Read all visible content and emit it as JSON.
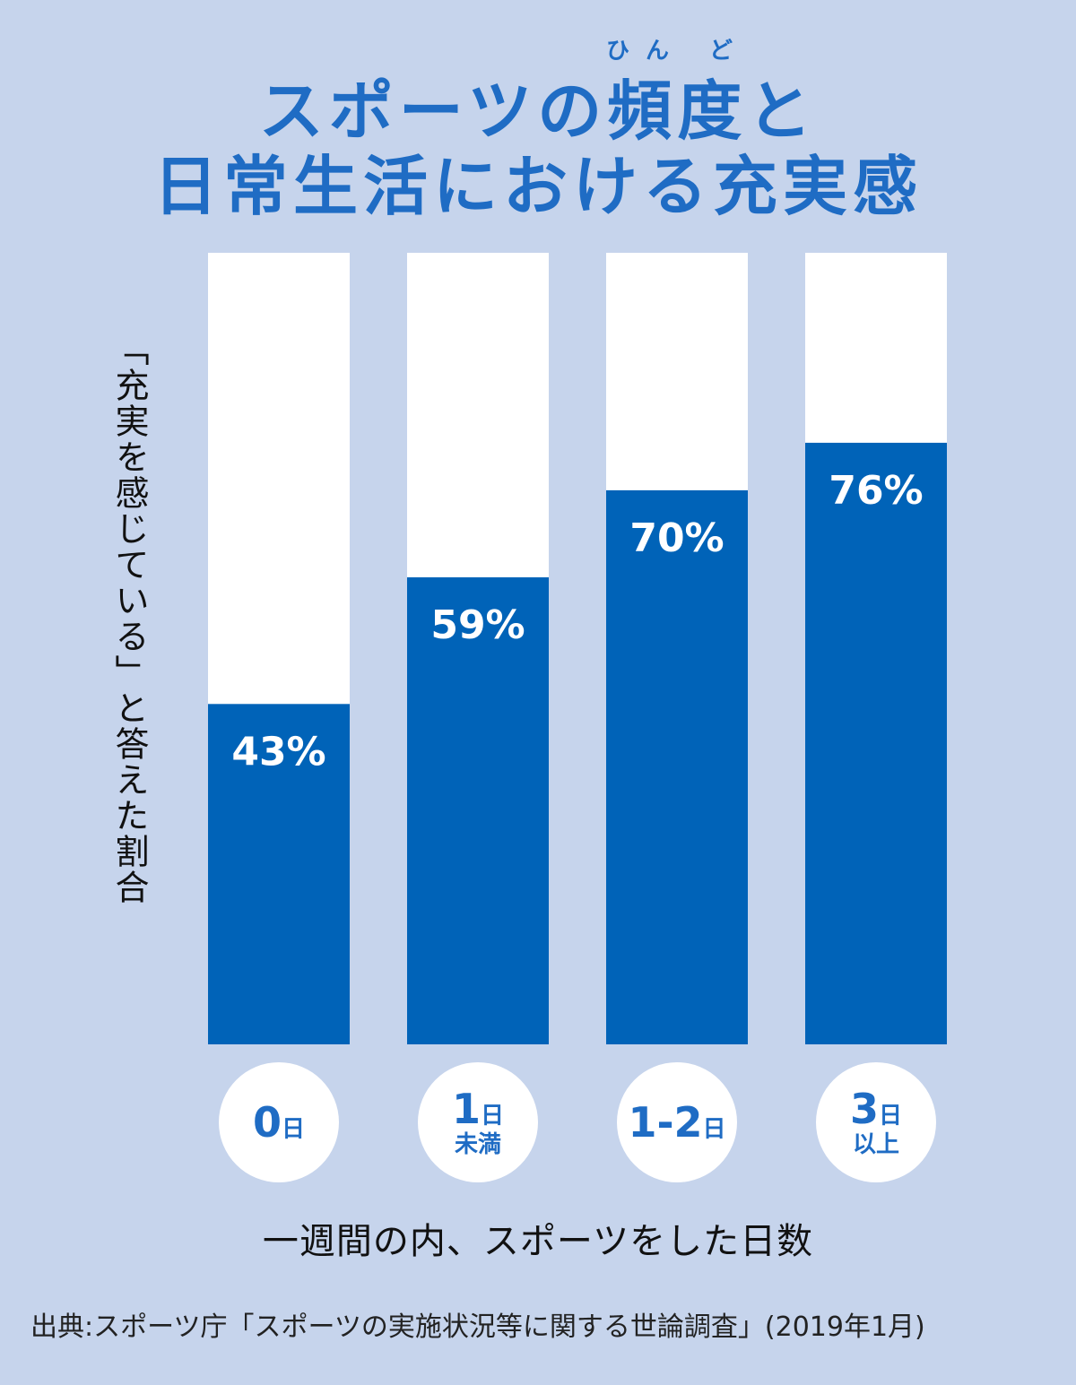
{
  "title": {
    "ruby": "ひん ど",
    "line1": "スポーツの頻度と",
    "line2": "日常生活における充実感"
  },
  "colors": {
    "background": "#c6d4ec",
    "bar_fill": "#0063b8",
    "bar_track": "#ffffff",
    "title": "#1f6cc4"
  },
  "chart_data": {
    "type": "bar",
    "categories": [
      "0日",
      "1日未満",
      "1-2日",
      "3日以上"
    ],
    "category_labels": [
      {
        "main": "0",
        "unit": "日",
        "sub": ""
      },
      {
        "main": "1",
        "unit": "日",
        "sub": "未満"
      },
      {
        "main": "1-2",
        "unit": "日",
        "sub": ""
      },
      {
        "main": "3",
        "unit": "日",
        "sub": "以上"
      }
    ],
    "values": [
      43,
      59,
      70,
      76
    ],
    "data_labels": [
      "43%",
      "59%",
      "70%",
      "76%"
    ],
    "ylim": [
      0,
      100
    ],
    "ylabel": "「充実を感じている」と答えた割合",
    "xlabel": "一週間の内、スポーツをした日数",
    "grid": false
  },
  "source": "出典:スポーツ庁「スポーツの実施状況等に関する世論調査」(2019年1月)"
}
